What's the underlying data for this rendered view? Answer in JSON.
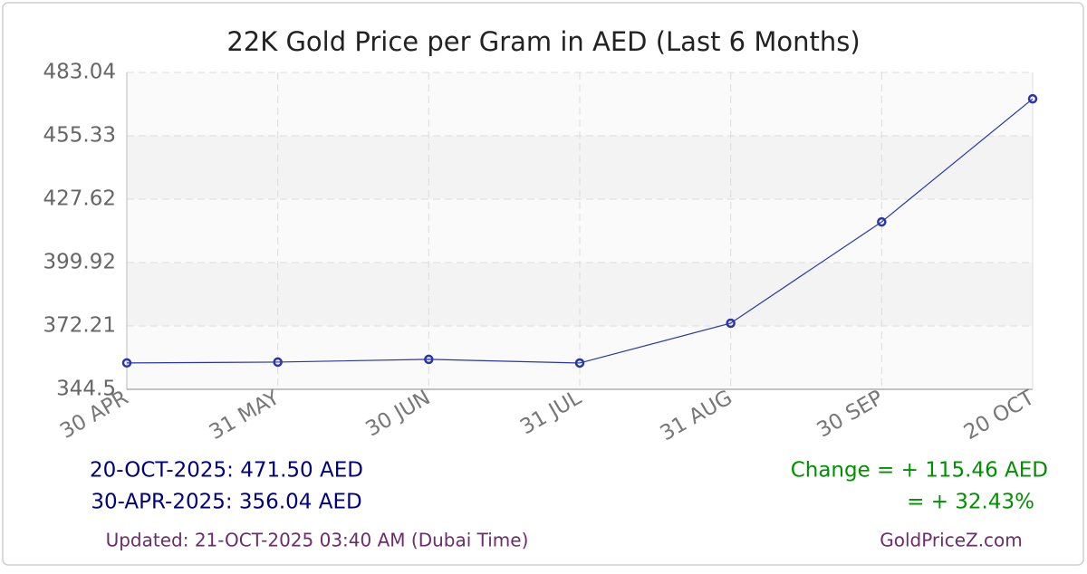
{
  "chart_data": {
    "type": "line",
    "title": "22K Gold Price per Gram in AED (Last 6 Months)",
    "categories": [
      "30 APR",
      "31 MAY",
      "30 JUN",
      "31 JUL",
      "31 AUG",
      "30 SEP",
      "20 OCT"
    ],
    "series": [
      {
        "name": "22K Gold",
        "color": "#2a35a8",
        "values": [
          356.04,
          356.4,
          357.6,
          356.0,
          373.4,
          417.7,
          471.5
        ]
      }
    ],
    "ylim": [
      344.5,
      483.04
    ],
    "yticks": [
      344.5,
      372.21,
      399.92,
      427.62,
      455.33,
      483.04
    ],
    "grid": true
  },
  "summary": {
    "latest": "20-OCT-2025: 471.50 AED",
    "earliest": "30-APR-2025: 356.04 AED",
    "change_abs": "Change = + 115.46 AED",
    "change_pct": "= + 32.43%"
  },
  "footer": {
    "updated": "Updated: 21-OCT-2025 03:40 AM (Dubai Time)",
    "site": "GoldPriceZ.com"
  }
}
